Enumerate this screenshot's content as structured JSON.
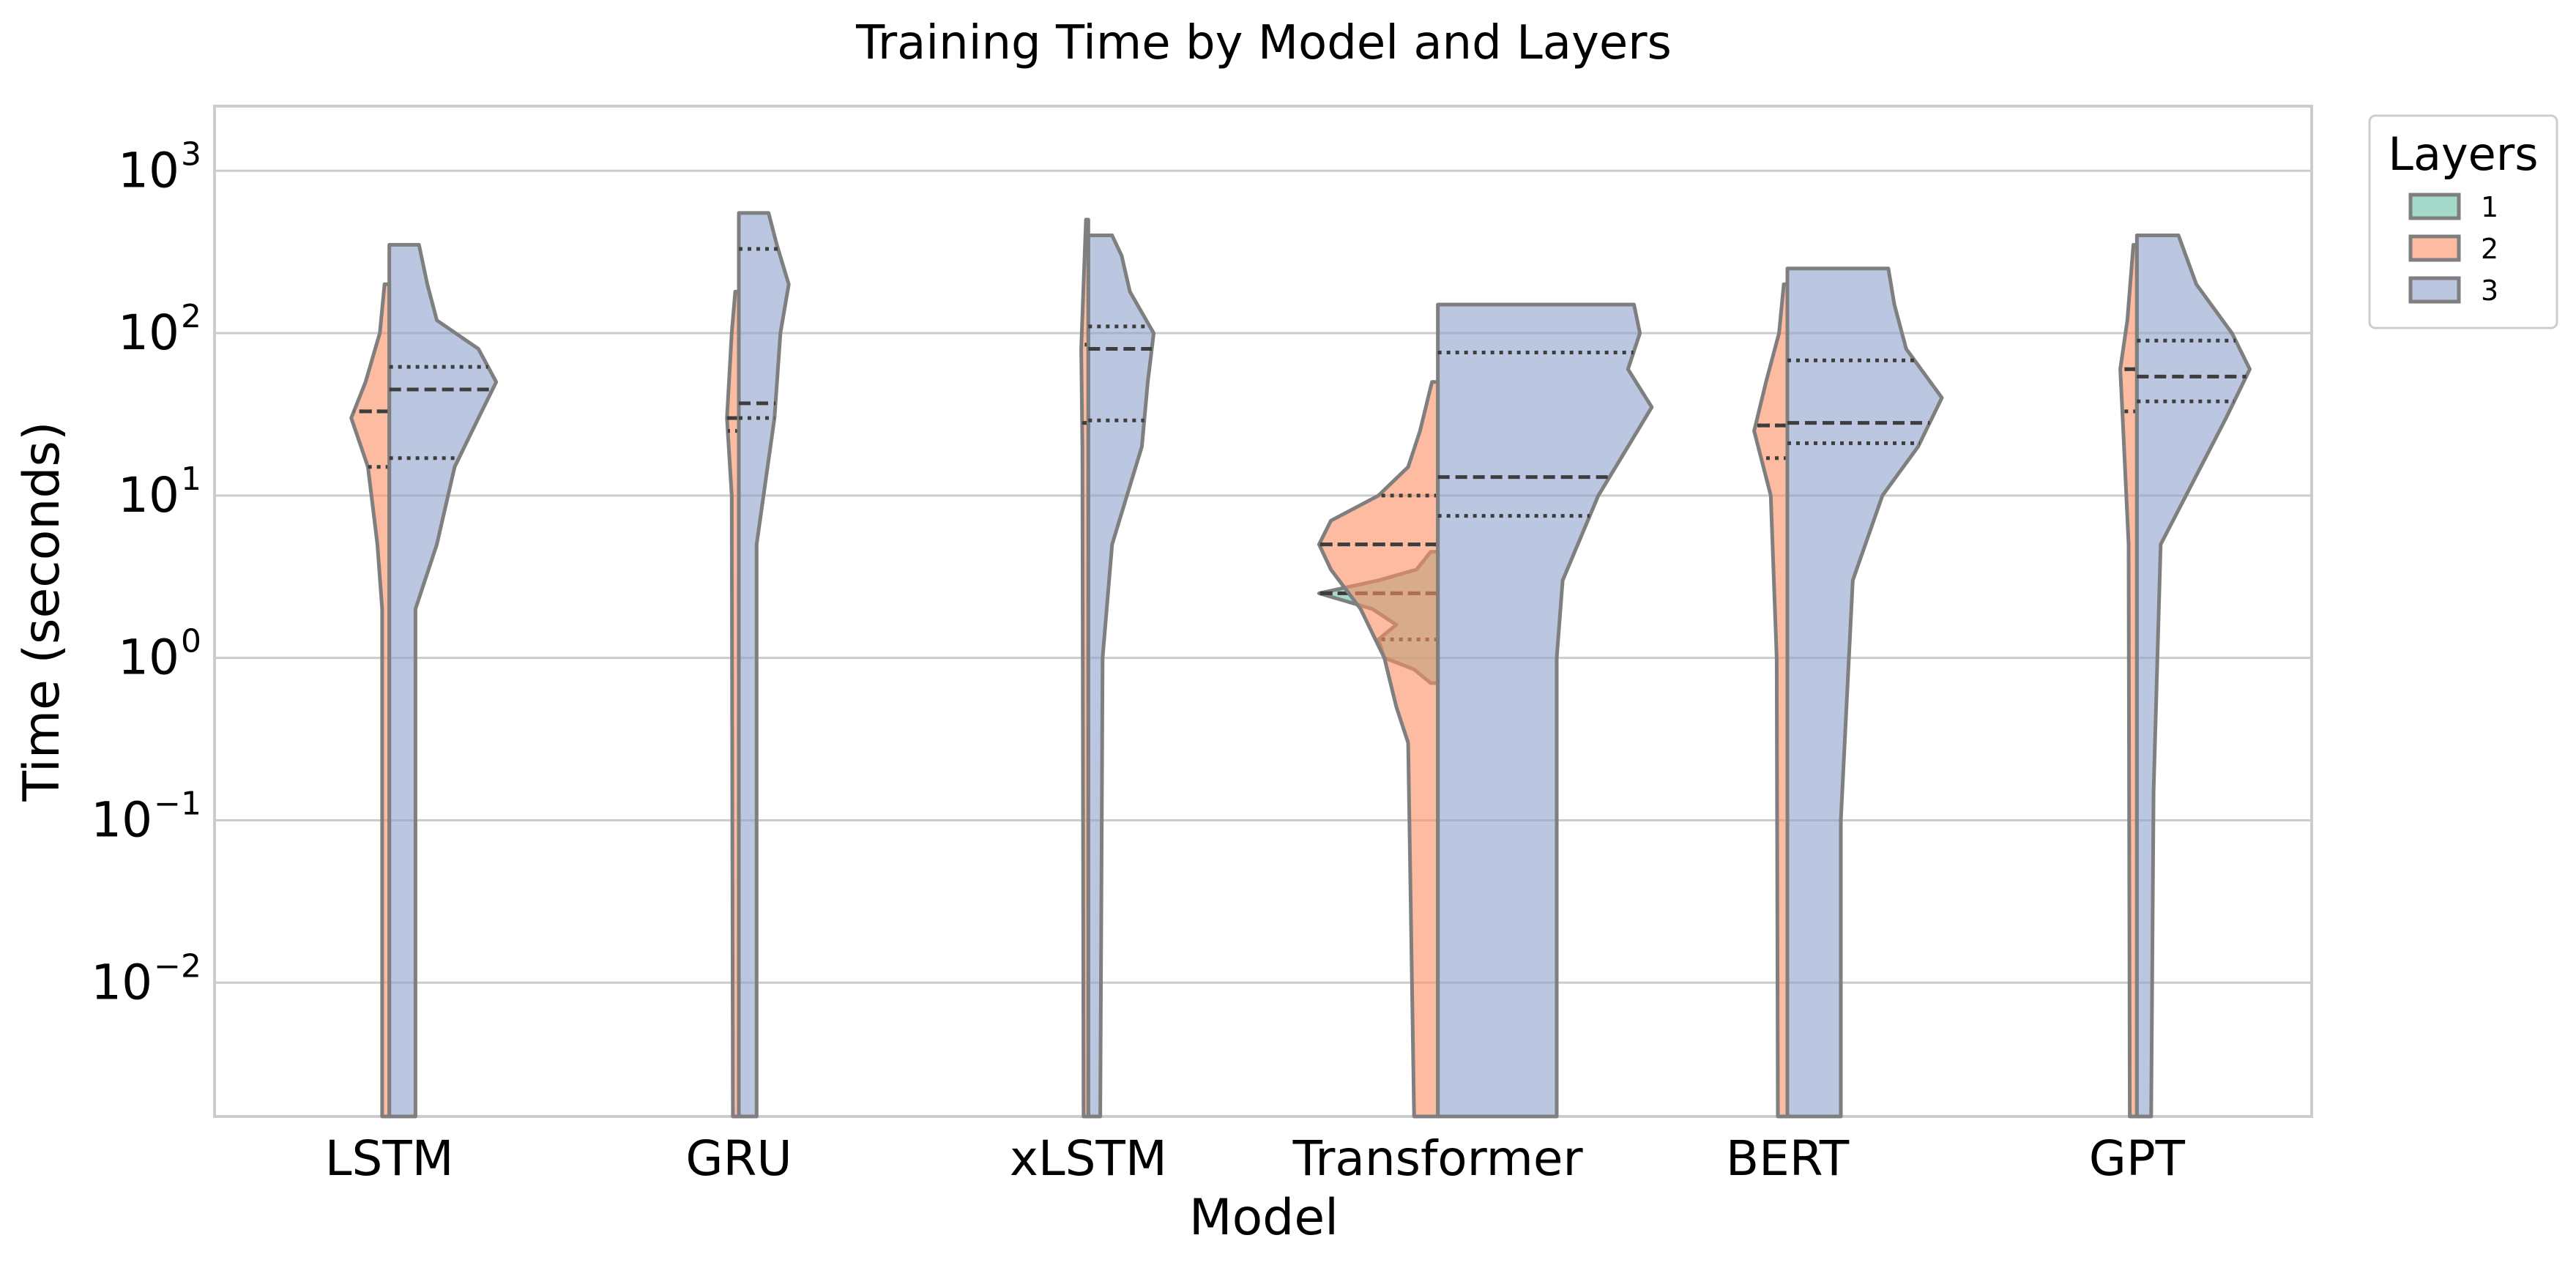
{
  "chart_data": {
    "type": "violin",
    "title": "Training Time by Model and Layers",
    "xlabel": "Model",
    "ylabel": "Time (seconds)",
    "yscale": "log",
    "ylim": [
      0.0015,
      2500
    ],
    "grid": true,
    "categories": [
      "LSTM",
      "GRU",
      "xLSTM",
      "Transformer",
      "BERT",
      "GPT"
    ],
    "legend": {
      "title": "Layers",
      "placement": "outside-top-right"
    },
    "y_ticks": [
      {
        "base": "10",
        "exp": "−2",
        "value": 0.01
      },
      {
        "base": "10",
        "exp": "−1",
        "value": 0.1
      },
      {
        "base": "10",
        "exp": "0",
        "value": 1
      },
      {
        "base": "10",
        "exp": "1",
        "value": 10
      },
      {
        "base": "10",
        "exp": "2",
        "value": 100
      },
      {
        "base": "10",
        "exp": "3",
        "value": 1000
      }
    ],
    "series": [
      {
        "name": "1",
        "color": "#66c2a5",
        "violins": [
          null,
          null,
          null,
          {
            "category": "Transformer",
            "side": "left",
            "median": 2.5,
            "q1": 1.3,
            "q3": 2.5,
            "profile": [
              [
                0.7,
                0.06
              ],
              [
                0.85,
                0.2
              ],
              [
                1.0,
                0.45
              ],
              [
                1.3,
                0.5
              ],
              [
                1.6,
                0.35
              ],
              [
                2.0,
                0.55
              ],
              [
                2.5,
                1.0
              ],
              [
                3.0,
                0.5
              ],
              [
                3.5,
                0.18
              ],
              [
                4.5,
                0.06
              ]
            ]
          },
          null,
          null
        ]
      },
      {
        "name": "2",
        "color": "#fc8d62",
        "violins": [
          {
            "category": "LSTM",
            "side": "left",
            "median": 33,
            "q1": 15,
            "q3": 33,
            "profile": [
              [
                0.0015,
                0.06
              ],
              [
                2,
                0.06
              ],
              [
                5,
                0.1
              ],
              [
                15,
                0.18
              ],
              [
                30,
                0.32
              ],
              [
                50,
                0.2
              ],
              [
                100,
                0.08
              ],
              [
                200,
                0.04
              ]
            ]
          },
          {
            "category": "GRU",
            "side": "left",
            "median": 30,
            "q1": 25,
            "q3": 30,
            "profile": [
              [
                0.0015,
                0.05
              ],
              [
                10,
                0.06
              ],
              [
                30,
                0.1
              ],
              [
                100,
                0.06
              ],
              [
                180,
                0.03
              ]
            ]
          },
          {
            "category": "xLSTM",
            "side": "left",
            "median": 28,
            "q1": 28,
            "q3": 85,
            "profile": [
              [
                0.0015,
                0.04
              ],
              [
                20,
                0.05
              ],
              [
                80,
                0.06
              ],
              [
                200,
                0.04
              ],
              [
                500,
                0.02
              ]
            ]
          },
          {
            "category": "Transformer",
            "side": "left",
            "median": 5,
            "q1": 5,
            "q3": 10,
            "profile": [
              [
                0.0015,
                0.2
              ],
              [
                0.3,
                0.25
              ],
              [
                0.5,
                0.35
              ],
              [
                1,
                0.45
              ],
              [
                2,
                0.65
              ],
              [
                3.5,
                0.9
              ],
              [
                5,
                1.0
              ],
              [
                7,
                0.9
              ],
              [
                10,
                0.5
              ],
              [
                15,
                0.25
              ],
              [
                25,
                0.15
              ],
              [
                50,
                0.05
              ]
            ]
          },
          {
            "category": "BERT",
            "side": "left",
            "median": 27,
            "q1": 17,
            "q3": 27,
            "profile": [
              [
                0.0015,
                0.08
              ],
              [
                1,
                0.09
              ],
              [
                10,
                0.14
              ],
              [
                25,
                0.28
              ],
              [
                50,
                0.18
              ],
              [
                100,
                0.07
              ],
              [
                200,
                0.03
              ]
            ]
          },
          {
            "category": "GPT",
            "side": "left",
            "median": 60,
            "q1": 33,
            "q3": 60,
            "profile": [
              [
                0.0015,
                0.06
              ],
              [
                5,
                0.07
              ],
              [
                30,
                0.12
              ],
              [
                60,
                0.14
              ],
              [
                120,
                0.08
              ],
              [
                350,
                0.03
              ]
            ]
          }
        ]
      },
      {
        "name": "3",
        "color": "#8da0cb",
        "violins": [
          {
            "category": "LSTM",
            "side": "right",
            "median": 45,
            "q1": 17,
            "q3": 62,
            "profile": [
              [
                0.0015,
                0.22
              ],
              [
                2,
                0.22
              ],
              [
                5,
                0.4
              ],
              [
                15,
                0.55
              ],
              [
                30,
                0.75
              ],
              [
                50,
                0.9
              ],
              [
                80,
                0.75
              ],
              [
                120,
                0.4
              ],
              [
                200,
                0.32
              ],
              [
                350,
                0.25
              ]
            ]
          },
          {
            "category": "GRU",
            "side": "right",
            "median": 37,
            "q1": 30,
            "q3": 330,
            "profile": [
              [
                0.0015,
                0.15
              ],
              [
                5,
                0.15
              ],
              [
                30,
                0.3
              ],
              [
                100,
                0.35
              ],
              [
                200,
                0.42
              ],
              [
                350,
                0.32
              ],
              [
                550,
                0.25
              ]
            ]
          },
          {
            "category": "xLSTM",
            "side": "right",
            "median": 80,
            "q1": 29,
            "q3": 110,
            "profile": [
              [
                0.0015,
                0.1
              ],
              [
                1,
                0.12
              ],
              [
                5,
                0.2
              ],
              [
                20,
                0.45
              ],
              [
                50,
                0.5
              ],
              [
                100,
                0.55
              ],
              [
                180,
                0.35
              ],
              [
                300,
                0.28
              ],
              [
                400,
                0.2
              ]
            ]
          },
          {
            "category": "Transformer",
            "side": "right",
            "median": 13,
            "q1": 7.5,
            "q3": 76,
            "profile": [
              [
                0.0015,
                1.0
              ],
              [
                1,
                1.0
              ],
              [
                3,
                1.05
              ],
              [
                10,
                1.35
              ],
              [
                20,
                1.6
              ],
              [
                35,
                1.8
              ],
              [
                60,
                1.6
              ],
              [
                100,
                1.7
              ],
              [
                150,
                1.65
              ]
            ]
          },
          {
            "category": "BERT",
            "side": "right",
            "median": 28,
            "q1": 21,
            "q3": 68,
            "profile": [
              [
                0.0015,
                0.45
              ],
              [
                0.1,
                0.45
              ],
              [
                3,
                0.55
              ],
              [
                10,
                0.8
              ],
              [
                20,
                1.1
              ],
              [
                40,
                1.3
              ],
              [
                80,
                1.0
              ],
              [
                150,
                0.9
              ],
              [
                250,
                0.85
              ]
            ]
          },
          {
            "category": "GPT",
            "side": "right",
            "median": 54,
            "q1": 38,
            "q3": 90,
            "profile": [
              [
                0.0015,
                0.12
              ],
              [
                0.15,
                0.14
              ],
              [
                5,
                0.2
              ],
              [
                30,
                0.75
              ],
              [
                60,
                0.95
              ],
              [
                100,
                0.8
              ],
              [
                200,
                0.5
              ],
              [
                400,
                0.35
              ]
            ]
          }
        ]
      }
    ]
  }
}
